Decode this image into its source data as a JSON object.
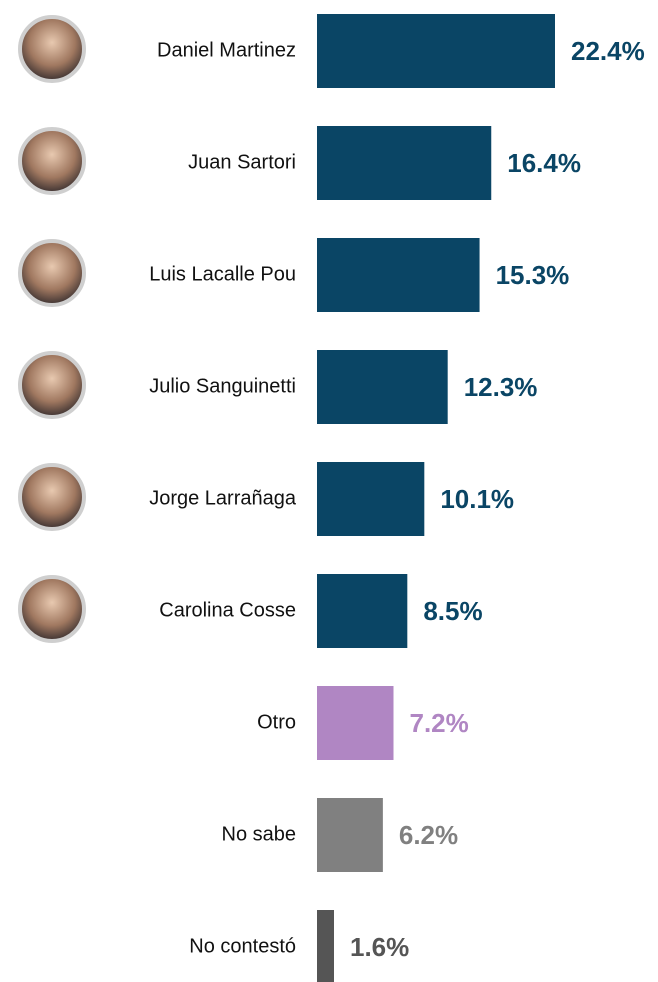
{
  "chart_data": {
    "type": "bar",
    "orientation": "horizontal",
    "categories": [
      "Daniel  Martinez",
      "Juan Sartori",
      "Luis Lacalle Pou",
      "Julio Sanguinetti",
      "Jorge Larrañaga",
      "Carolina Cosse",
      "Otro",
      "No sabe",
      "No contestó"
    ],
    "values": [
      22.4,
      16.4,
      15.3,
      12.3,
      10.1,
      8.5,
      7.2,
      6.2,
      1.6
    ],
    "value_labels": [
      "22.4%",
      "16.4%",
      "15.3%",
      "12.3%",
      "10.1%",
      "8.5%",
      "7.2%",
      "6.2%",
      "1.6%"
    ],
    "colors": [
      "#0a4565",
      "#0a4565",
      "#0a4565",
      "#0a4565",
      "#0a4565",
      "#0a4565",
      "#b086c3",
      "#808080",
      "#555555"
    ]
  }
}
